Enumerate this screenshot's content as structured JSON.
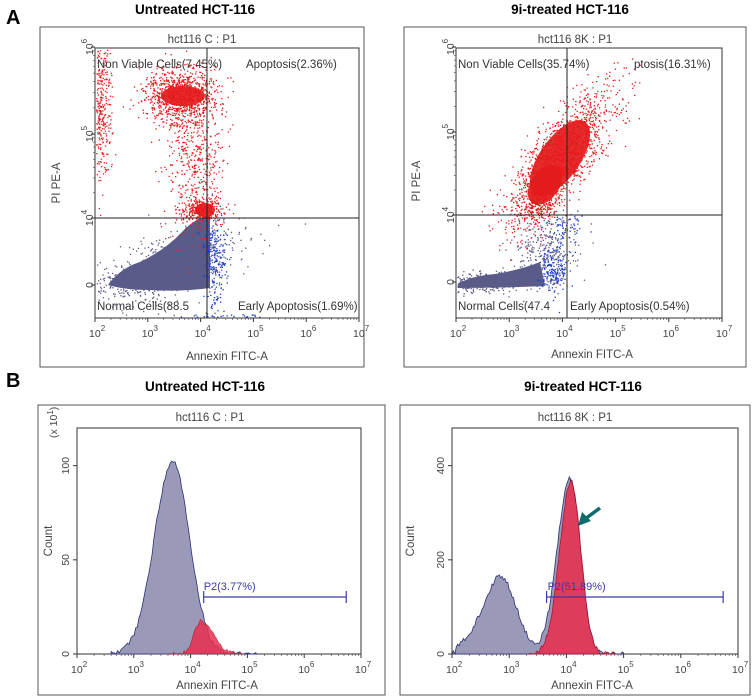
{
  "panels": {
    "A": {
      "letter": "A",
      "left_heading": "Untreated HCT-116",
      "right_heading": "9i-treated HCT-116"
    },
    "B": {
      "letter": "B",
      "left_heading": "Untreated HCT-116",
      "right_heading": "9i-treated HCT-116"
    }
  },
  "colors": {
    "dead_population": "#e41a1c",
    "live_population": "#5b5b8a",
    "early_apoptosis": "#1f3fd0",
    "histogram_fill": "#9a9ab8",
    "histogram_overlay": "#e8304f",
    "gate_line": "#3a3aa8",
    "arrow": "#0f6b6b"
  },
  "chart_data": [
    {
      "type": "scatter",
      "title": "hct116 C : P1",
      "xlabel": "Annexin FITC-A",
      "ylabel": "PI PE-A",
      "x_scale": "log",
      "xlim": [
        100,
        10000000
      ],
      "x_ticks": [
        {
          "base": "10",
          "exp": "2"
        },
        {
          "base": "10",
          "exp": "3"
        },
        {
          "base": "10",
          "exp": "4"
        },
        {
          "base": "10",
          "exp": "5"
        },
        {
          "base": "10",
          "exp": "6"
        },
        {
          "base": "10",
          "exp": "7"
        }
      ],
      "y_ticks": [
        {
          "base": "0",
          "exp": ""
        },
        {
          "base": "10",
          "exp": "4"
        },
        {
          "base": "10",
          "exp": "5"
        },
        {
          "base": "10",
          "exp": "6"
        }
      ],
      "quadrants": {
        "upper_left": "Non Viable Cells(7.45%)",
        "upper_right": "Apoptosis(2.36%)",
        "lower_left": "Normal Cells(88.5",
        "lower_right": "Early Apoptosis(1.69%)"
      },
      "quadrant_percent": {
        "non_viable": 7.45,
        "late_apoptosis": 2.36,
        "normal": 88.5,
        "early_apoptosis": 1.69
      }
    },
    {
      "type": "scatter",
      "title": "hct116 8K : P1",
      "xlabel": "Annexin FITC-A",
      "ylabel": "PI PE-A",
      "x_scale": "log",
      "xlim": [
        100,
        10000000
      ],
      "x_ticks": [
        {
          "base": "10",
          "exp": "2"
        },
        {
          "base": "10",
          "exp": "3"
        },
        {
          "base": "10",
          "exp": "4"
        },
        {
          "base": "10",
          "exp": "5"
        },
        {
          "base": "10",
          "exp": "6"
        },
        {
          "base": "10",
          "exp": "7"
        }
      ],
      "y_ticks": [
        {
          "base": "0",
          "exp": ""
        },
        {
          "base": "10",
          "exp": "4"
        },
        {
          "base": "10",
          "exp": "5"
        },
        {
          "base": "10",
          "exp": "6"
        }
      ],
      "quadrants": {
        "upper_left": "Non Viable Cells(35.74%)",
        "upper_right": "ptosis(16.31%)",
        "lower_left": "Normal Cells(47.4",
        "lower_right": "Early Apoptosis(0.54%)"
      },
      "quadrant_percent": {
        "non_viable": 35.74,
        "late_apoptosis": 16.31,
        "normal": 47.4,
        "early_apoptosis": 0.54
      }
    },
    {
      "type": "area",
      "title": "hct116 C : P1",
      "xlabel": "Annexin FITC-A",
      "ylabel": "Count",
      "y_multiplier": "(x 10",
      "y_multiplier_exp": "1",
      "y_multiplier_close": ")",
      "x_scale": "log",
      "xlim": [
        100,
        10000000
      ],
      "ylim": [
        0,
        1200
      ],
      "x_ticks": [
        {
          "base": "10",
          "exp": "2"
        },
        {
          "base": "10",
          "exp": "3"
        },
        {
          "base": "10",
          "exp": "4"
        },
        {
          "base": "10",
          "exp": "5"
        },
        {
          "base": "10",
          "exp": "6"
        },
        {
          "base": "10",
          "exp": "7"
        }
      ],
      "y_ticks": [
        "0",
        "50",
        "100"
      ],
      "y_tick_values": [
        0,
        500,
        1000
      ],
      "gate": {
        "label": "P2(3.77%)",
        "x_start": 17000,
        "x_end": 5500000,
        "percent": 3.77
      },
      "main_peak": {
        "x": 4800,
        "count": 1020
      },
      "overlay_peak": {
        "x": 15000,
        "count": 175
      }
    },
    {
      "type": "area",
      "title": "hct116 8K : P1",
      "xlabel": "Annexin FITC-A",
      "ylabel": "Count",
      "x_scale": "log",
      "xlim": [
        100,
        10000000
      ],
      "ylim": [
        0,
        480
      ],
      "x_ticks": [
        {
          "base": "10",
          "exp": "2"
        },
        {
          "base": "10",
          "exp": "3"
        },
        {
          "base": "10",
          "exp": "4"
        },
        {
          "base": "10",
          "exp": "5"
        },
        {
          "base": "10",
          "exp": "6"
        },
        {
          "base": "10",
          "exp": "7"
        }
      ],
      "y_ticks": [
        "0",
        "200",
        "400"
      ],
      "y_tick_values": [
        0,
        200,
        400
      ],
      "gate": {
        "label": "P2(51.89%)",
        "x_start": 4500,
        "x_end": 5500000,
        "percent": 51.89
      },
      "secondary_peak": {
        "x": 700,
        "count": 165
      },
      "main_peak": {
        "x": 11500,
        "count": 375
      }
    }
  ]
}
